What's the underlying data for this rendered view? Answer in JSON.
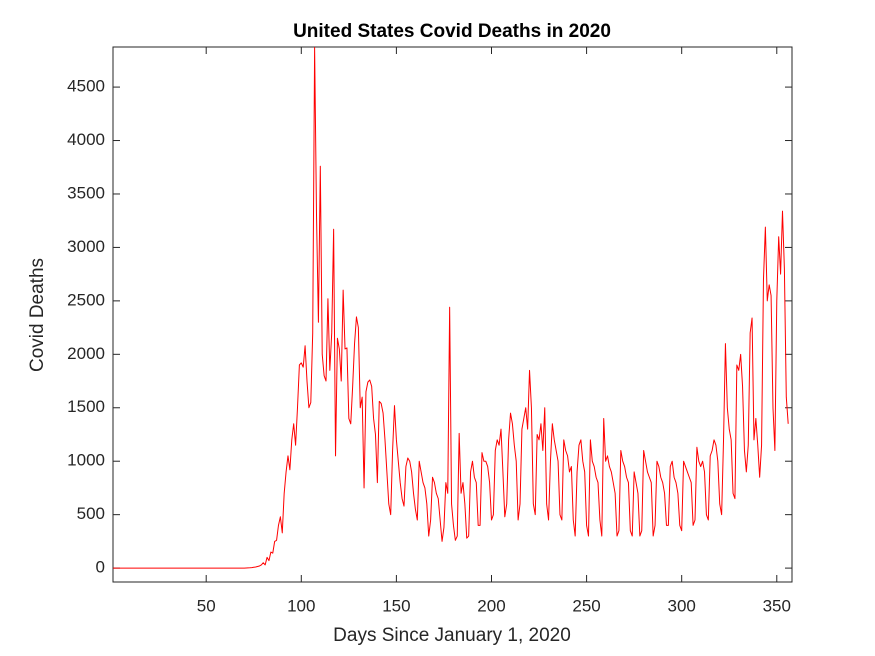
{
  "chart_data": {
    "type": "line",
    "title": "United States Covid Deaths in 2020",
    "x_label": "Days Since January 1, 2020",
    "y_label": "Covid Deaths",
    "color": "#ff0000",
    "xlim": [
      1,
      358
    ],
    "ylim": [
      -130,
      4875
    ],
    "xticks": [
      50,
      100,
      150,
      200,
      250,
      300,
      350
    ],
    "yticks": [
      0,
      500,
      1000,
      1500,
      2000,
      2500,
      3000,
      3500,
      4000,
      4500
    ],
    "x": [
      1,
      70,
      71,
      72,
      73,
      74,
      75,
      76,
      77,
      78,
      79,
      80,
      81,
      82,
      83,
      84,
      85,
      86,
      87,
      88,
      89,
      90,
      91,
      92,
      93,
      94,
      95,
      96,
      97,
      98,
      99,
      100,
      101,
      102,
      103,
      104,
      105,
      106,
      107,
      108,
      109,
      110,
      111,
      112,
      113,
      114,
      115,
      116,
      117,
      118,
      119,
      120,
      121,
      122,
      123,
      124,
      125,
      126,
      127,
      128,
      129,
      130,
      131,
      132,
      133,
      134,
      135,
      136,
      137,
      138,
      139,
      140,
      141,
      142,
      143,
      144,
      145,
      146,
      147,
      148,
      149,
      150,
      151,
      152,
      153,
      154,
      155,
      156,
      157,
      158,
      159,
      160,
      161,
      162,
      163,
      164,
      165,
      166,
      167,
      168,
      169,
      170,
      171,
      172,
      173,
      174,
      175,
      176,
      177,
      178,
      179,
      180,
      181,
      182,
      183,
      184,
      185,
      186,
      187,
      188,
      189,
      190,
      191,
      192,
      193,
      194,
      195,
      196,
      197,
      198,
      199,
      200,
      201,
      202,
      203,
      204,
      205,
      206,
      207,
      208,
      209,
      210,
      211,
      212,
      213,
      214,
      215,
      216,
      217,
      218,
      219,
      220,
      221,
      222,
      223,
      224,
      225,
      226,
      227,
      228,
      229,
      230,
      231,
      232,
      233,
      234,
      235,
      236,
      237,
      238,
      239,
      240,
      241,
      242,
      243,
      244,
      245,
      246,
      247,
      248,
      249,
      250,
      251,
      252,
      253,
      254,
      255,
      256,
      257,
      258,
      259,
      260,
      261,
      262,
      263,
      264,
      265,
      266,
      267,
      268,
      269,
      270,
      271,
      272,
      273,
      274,
      275,
      276,
      277,
      278,
      279,
      280,
      281,
      282,
      283,
      284,
      285,
      286,
      287,
      288,
      289,
      290,
      291,
      292,
      293,
      294,
      295,
      296,
      297,
      298,
      299,
      300,
      301,
      302,
      303,
      304,
      305,
      306,
      307,
      308,
      309,
      310,
      311,
      312,
      313,
      314,
      315,
      316,
      317,
      318,
      319,
      320,
      321,
      322,
      323,
      324,
      325,
      326,
      327,
      328,
      329,
      330,
      331,
      332,
      333,
      334,
      335,
      336,
      337,
      338,
      339,
      340,
      341,
      342,
      343,
      344,
      345,
      346,
      347,
      348,
      349,
      350,
      351,
      352,
      353,
      354,
      355,
      356
    ],
    "values": [
      0,
      0,
      1,
      2,
      3,
      5,
      8,
      10,
      15,
      20,
      30,
      50,
      30,
      100,
      70,
      150,
      140,
      250,
      260,
      400,
      480,
      330,
      700,
      900,
      1050,
      920,
      1200,
      1350,
      1150,
      1500,
      1900,
      1920,
      1880,
      2080,
      1750,
      1500,
      1550,
      2200,
      4870,
      3300,
      2300,
      3760,
      2000,
      1800,
      1750,
      2520,
      1850,
      2200,
      3170,
      1050,
      2150,
      2050,
      1750,
      2600,
      2050,
      2060,
      1400,
      1350,
      1700,
      2100,
      2350,
      2250,
      1500,
      1600,
      750,
      1650,
      1740,
      1760,
      1700,
      1400,
      1250,
      800,
      1560,
      1540,
      1450,
      1200,
      900,
      600,
      500,
      1100,
      1520,
      1200,
      1000,
      800,
      650,
      580,
      950,
      1030,
      1000,
      900,
      700,
      550,
      450,
      1000,
      900,
      800,
      750,
      600,
      300,
      450,
      850,
      800,
      700,
      650,
      450,
      250,
      380,
      800,
      700,
      2440,
      600,
      400,
      260,
      300,
      1260,
      700,
      800,
      600,
      280,
      300,
      900,
      1000,
      850,
      800,
      400,
      400,
      1080,
      1000,
      1000,
      950,
      800,
      450,
      500,
      1100,
      1200,
      1150,
      1300,
      900,
      480,
      600,
      1200,
      1450,
      1350,
      1150,
      1000,
      450,
      600,
      1300,
      1400,
      1500,
      1300,
      1850,
      1500,
      600,
      500,
      1250,
      1200,
      1350,
      1100,
      1500,
      600,
      450,
      1000,
      1350,
      1200,
      1100,
      1000,
      500,
      450,
      1200,
      1100,
      1050,
      900,
      950,
      450,
      300,
      900,
      1150,
      1200,
      1000,
      900,
      400,
      300,
      1200,
      1000,
      950,
      850,
      800,
      450,
      300,
      1400,
      1000,
      1050,
      950,
      900,
      800,
      700,
      300,
      350,
      1100,
      1000,
      950,
      850,
      800,
      350,
      300,
      900,
      800,
      700,
      300,
      350,
      1100,
      1000,
      900,
      850,
      800,
      300,
      400,
      1000,
      950,
      850,
      800,
      700,
      400,
      400,
      950,
      1000,
      850,
      800,
      700,
      400,
      350,
      1000,
      950,
      900,
      850,
      800,
      400,
      450,
      1130,
      1000,
      950,
      1000,
      900,
      500,
      450,
      1050,
      1100,
      1200,
      1150,
      1000,
      600,
      500,
      1200,
      2100,
      1500,
      1300,
      1200,
      700,
      650,
      1900,
      1850,
      2000,
      1700,
      1100,
      900,
      1150,
      2200,
      2340,
      1200,
      1400,
      1150,
      850,
      1150,
      2700,
      3190,
      2500,
      2650,
      2550,
      1500,
      1100,
      2500,
      3100,
      2750,
      3340,
      2800,
      1600,
      1350
    ]
  }
}
